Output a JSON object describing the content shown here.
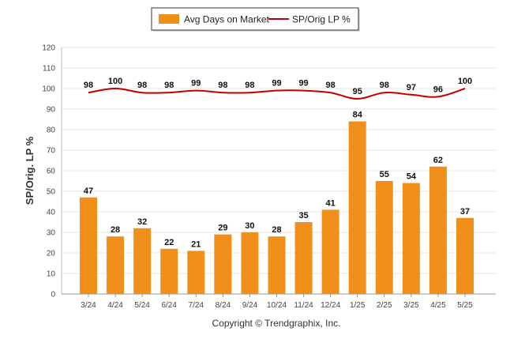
{
  "chart_data": {
    "type": "bar",
    "categories": [
      "3/24",
      "4/24",
      "5/24",
      "6/24",
      "7/24",
      "8/24",
      "9/24",
      "10/24",
      "11/24",
      "12/24",
      "1/25",
      "2/25",
      "3/25",
      "4/25",
      "5/25"
    ],
    "series": [
      {
        "name": "Avg Days on Market",
        "type": "bar",
        "color": "#f0901a",
        "values": [
          47,
          28,
          32,
          22,
          21,
          29,
          30,
          28,
          35,
          41,
          84,
          55,
          54,
          62,
          37
        ]
      },
      {
        "name": "SP/Orig LP %",
        "type": "line",
        "color": "#c00000",
        "values": [
          98,
          100,
          98,
          98,
          99,
          98,
          98,
          99,
          99,
          98,
          95,
          98,
          97,
          96,
          100
        ]
      }
    ],
    "ylabel": "SP/Orig. LP %",
    "xlabel": "",
    "ylim": [
      0,
      120
    ],
    "yticks": [
      0,
      10,
      20,
      30,
      40,
      50,
      60,
      70,
      80,
      90,
      100,
      110,
      120
    ],
    "grid": true,
    "legend_position": "top-center"
  },
  "legend": {
    "bar_label": "Avg Days on Market",
    "line_label": "SP/Orig LP %"
  },
  "footer": {
    "copyright": "Copyright © Trendgraphix, Inc."
  }
}
